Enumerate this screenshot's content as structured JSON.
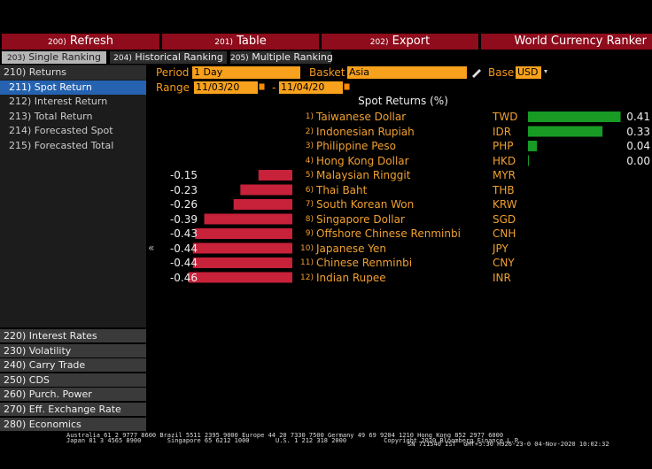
{
  "toolbar": [
    {
      "num": "200)",
      "label": "Refresh"
    },
    {
      "num": "201)",
      "label": "Table"
    },
    {
      "num": "202)",
      "label": "Export"
    }
  ],
  "app_title": "World Currency Ranker",
  "tabs": [
    {
      "num": "203)",
      "label": "Single Ranking"
    },
    {
      "num": "204)",
      "label": "Historical Ranking"
    },
    {
      "num": "205)",
      "label": "Multiple Ranking"
    }
  ],
  "menu": {
    "header": "210) Returns",
    "items": [
      "211) Spot Return",
      "212) Interest Return",
      "213) Total Return",
      "214) Forecasted Spot",
      "215) Forecasted Total"
    ],
    "sections": [
      "220) Interest Rates",
      "230) Volatility",
      "240) Carry Trade",
      "250) CDS",
      "260) Purch. Power",
      "270) Eff. Exchange Rate",
      "280) Economics"
    ]
  },
  "controls": {
    "period_label": "Period",
    "period": "1 Day",
    "basket_label": "Basket",
    "basket": "Asia",
    "base_label": "Base",
    "base": "USD",
    "range_label": "Range",
    "range_from": "11/03/20",
    "range_sep": "-",
    "range_to": "11/04/20"
  },
  "returns": {
    "title": "Spot Returns (%)",
    "ranks": [
      "1)",
      "2)",
      "3)",
      "4)",
      "5)",
      "6)",
      "7)",
      "8)",
      "9)",
      "10)",
      "11)",
      "12)"
    ],
    "names": [
      "Taiwanese Dollar",
      "Indonesian Rupiah",
      "Philippine Peso",
      "Hong Kong Dollar",
      "Malaysian Ringgit",
      "Thai Baht",
      "South Korean Won",
      "Singapore Dollar",
      "Offshore Chinese Renminbi",
      "Japanese Yen",
      "Chinese Renminbi",
      "Indian Rupee"
    ],
    "codes": [
      "TWD",
      "IDR",
      "PHP",
      "HKD",
      "MYR",
      "THB",
      "KRW",
      "SGD",
      "CNH",
      "JPY",
      "CNY",
      "INR"
    ],
    "values": [
      0.41,
      0.33,
      0.04,
      0,
      -0.15,
      -0.23,
      -0.26,
      -0.39,
      -0.43,
      -0.44,
      -0.44,
      -0.46
    ],
    "value_labels": [
      "0.41",
      "0.33",
      "0.04",
      "0.00",
      "-0.15",
      "-0.23",
      "-0.26",
      "-0.39",
      "-0.43",
      "-0.44",
      "-0.44",
      "-0.46"
    ]
  },
  "footer": [
    "Australia 61 2 9777 8600 Brazil 5511 2395 9000 Europe 44 20 7330 7500 Germany 49 69 9204 1210 Hong Kong 852 2977 6000",
    "Japan 81 3 4565 8900       Singapore 65 6212 1000       U.S. 1 212 318 2000          Copyright 2020 Bloomberg Finance L.P.",
    "SN 711540 IST  GMT+5:30 H926-23-0 04-Nov-2020 10:02:32"
  ]
}
